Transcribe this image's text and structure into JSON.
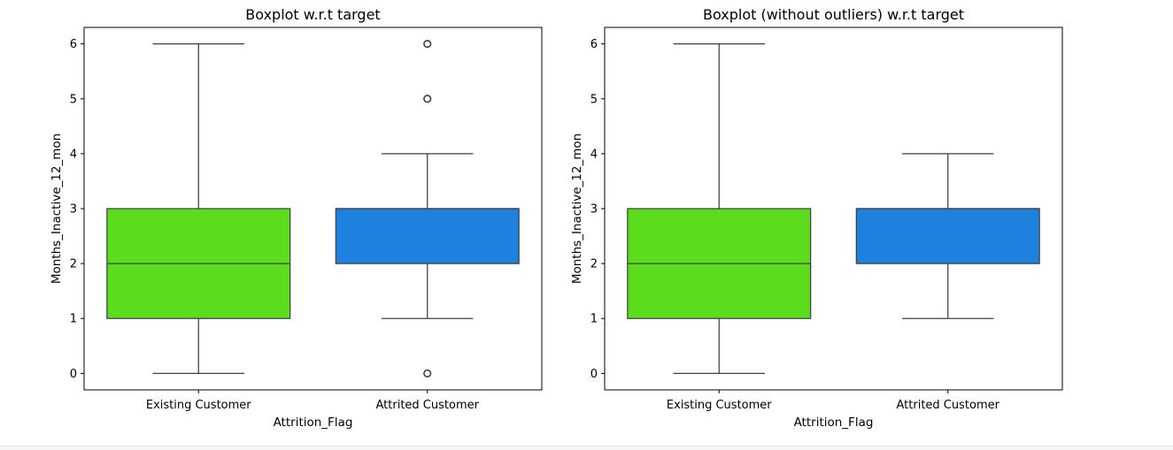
{
  "chart_data": [
    {
      "type": "boxplot",
      "title": "Boxplot w.r.t target",
      "xlabel": "Attrition_Flag",
      "ylabel": "Months_Inactive_12_mon",
      "ylim": [
        -0.3,
        6.3
      ],
      "yticks": [
        0,
        1,
        2,
        3,
        4,
        5,
        6
      ],
      "ytick_labels": [
        "0",
        "1",
        "2",
        "3",
        "4",
        "5",
        "6"
      ],
      "grid": false,
      "categories": [
        "Existing Customer",
        "Attrited Customer"
      ],
      "boxes": [
        {
          "category": "Existing Customer",
          "whisker_low": 0,
          "q1": 1,
          "median": 2,
          "q3": 3,
          "whisker_high": 6,
          "outliers": [],
          "color": "#5bdc1d"
        },
        {
          "category": "Attrited Customer",
          "whisker_low": 1,
          "q1": 2,
          "median": 3,
          "q3": 3,
          "whisker_high": 4,
          "outliers": [
            0,
            5,
            6
          ],
          "color": "#1e81de"
        }
      ]
    },
    {
      "type": "boxplot",
      "title": "Boxplot (without outliers) w.r.t target",
      "xlabel": "Attrition_Flag",
      "ylabel": "Months_Inactive_12_mon",
      "ylim": [
        -0.3,
        6.3
      ],
      "yticks": [
        0,
        1,
        2,
        3,
        4,
        5,
        6
      ],
      "ytick_labels": [
        "0",
        "1",
        "2",
        "3",
        "4",
        "5",
        "6"
      ],
      "grid": false,
      "categories": [
        "Existing Customer",
        "Attrited Customer"
      ],
      "boxes": [
        {
          "category": "Existing Customer",
          "whisker_low": 0,
          "q1": 1,
          "median": 2,
          "q3": 3,
          "whisker_high": 6,
          "outliers": [],
          "color": "#5bdc1d"
        },
        {
          "category": "Attrited Customer",
          "whisker_low": 1,
          "q1": 2,
          "median": 3,
          "q3": 3,
          "whisker_high": 4,
          "outliers": [],
          "color": "#1e81de"
        }
      ]
    }
  ]
}
